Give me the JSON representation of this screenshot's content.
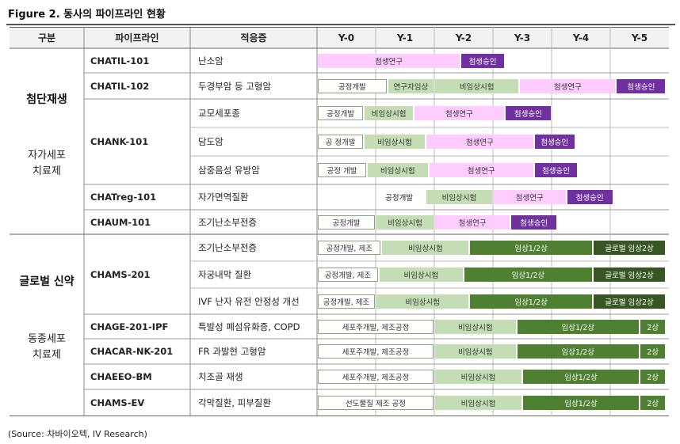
{
  "figure_title": "Figure 2. 동사의 파이프라인 현황",
  "source": "(Source: 차바이오텍, IV Research)",
  "headers": [
    "구분",
    "파이프라인",
    "적응증",
    "Y-0",
    "Y-1",
    "Y-2",
    "Y-3",
    "Y-4",
    "Y-5"
  ],
  "groups": [
    {
      "title": "첨단재생",
      "subtitle_line1": "자가세포",
      "subtitle_line2": "치료제"
    },
    {
      "title": "글로벌 신약",
      "subtitle_line1": "동종세포",
      "subtitle_line2": "치료제"
    }
  ],
  "pipelines": [
    "CHATIL-101",
    "CHATIL-102",
    "CHANK-101",
    "CHATreg-101",
    "CHAUM-101",
    "CHAMS-201",
    "CHAGE-201-IPF",
    "CHACAR-NK-201",
    "CHAEEO-BM",
    "CHAMS-EV"
  ],
  "rows": [
    {
      "indication": "난소암",
      "bars": [
        {
          "label": "첨생연구",
          "color": "pink",
          "start": 0,
          "end": 2.45
        },
        {
          "label": "첨생승인",
          "color": "purple",
          "start": 2.45,
          "end": 3.2
        }
      ]
    },
    {
      "indication": "두경부암 등 고형암",
      "bars": [
        {
          "label": "공정개발",
          "color": "white",
          "start": 0,
          "end": 1.2
        },
        {
          "label": "연구자임상",
          "color": "lgreen",
          "start": 1.2,
          "end": 2.0
        },
        {
          "label": "비임상시험",
          "color": "lgreen",
          "start": 2.0,
          "end": 3.45
        },
        {
          "label": "첨생연구",
          "color": "pink",
          "start": 3.45,
          "end": 5.1
        },
        {
          "label": "첨생승인",
          "color": "purple",
          "start": 5.1,
          "end": 5.95
        }
      ]
    },
    {
      "indication": "교모세포종",
      "bars": [
        {
          "label": "공정개발",
          "color": "white",
          "start": 0,
          "end": 0.8
        },
        {
          "label": "비임상시험",
          "color": "lgreen",
          "start": 0.8,
          "end": 1.65
        },
        {
          "label": "첨생연구",
          "color": "pink",
          "start": 1.65,
          "end": 3.2
        },
        {
          "label": "첨생승인",
          "color": "purple",
          "start": 3.2,
          "end": 4.0
        }
      ]
    },
    {
      "indication": "담도암",
      "bars": [
        {
          "label": "공 정개발",
          "color": "white",
          "start": 0,
          "end": 0.8
        },
        {
          "label": "비임상시험",
          "color": "lgreen",
          "start": 0.8,
          "end": 1.85
        },
        {
          "label": "첨생연구",
          "color": "pink",
          "start": 1.85,
          "end": 3.7
        },
        {
          "label": "첨생승인",
          "color": "purple",
          "start": 3.7,
          "end": 4.4
        }
      ]
    },
    {
      "indication": "삼중음성 유방암",
      "bars": [
        {
          "label": "공정 개발",
          "color": "white",
          "start": 0,
          "end": 0.85
        },
        {
          "label": "비임상시험",
          "color": "lgreen",
          "start": 0.85,
          "end": 1.9
        },
        {
          "label": "첨생연구",
          "color": "pink",
          "start": 1.9,
          "end": 3.7
        },
        {
          "label": "첨생승인",
          "color": "purple",
          "start": 3.7,
          "end": 4.45
        }
      ]
    },
    {
      "indication": "자가면역질환",
      "bars": [
        {
          "label": "공정개발",
          "color": "none",
          "start": 0.95,
          "end": 1.85
        },
        {
          "label": "비임상시험",
          "color": "lgreen",
          "start": 1.85,
          "end": 3.0
        },
        {
          "label": "첨생연구",
          "color": "pink",
          "start": 3.0,
          "end": 4.25
        },
        {
          "label": "첨생승인",
          "color": "purple",
          "start": 4.25,
          "end": 5.05
        }
      ]
    },
    {
      "indication": "조기난소부전증",
      "bars": [
        {
          "label": "공정개발",
          "color": "white",
          "start": 0,
          "end": 1.0
        },
        {
          "label": "비임상시험",
          "color": "lgreen",
          "start": 1.0,
          "end": 2.0
        },
        {
          "label": "첨생연구",
          "color": "pink",
          "start": 2.0,
          "end": 3.3
        },
        {
          "label": "첨생승인",
          "color": "purple",
          "start": 3.3,
          "end": 4.1
        }
      ]
    },
    {
      "indication": "조기난소부전증",
      "bars": [
        {
          "label": "공정개발, 제조",
          "color": "white",
          "start": 0,
          "end": 1.1
        },
        {
          "label": "비임상시험",
          "color": "lgreen",
          "start": 1.1,
          "end": 2.6
        },
        {
          "label": "임상1/2상",
          "color": "dgreen",
          "start": 2.6,
          "end": 4.7
        },
        {
          "label": "글로벌 임상2상",
          "color": "vdark",
          "start": 4.7,
          "end": 5.95
        }
      ]
    },
    {
      "indication": "자궁내막 질환",
      "bars": [
        {
          "label": "공정개발, 제조",
          "color": "white",
          "start": 0,
          "end": 1.05
        },
        {
          "label": "비임상시험",
          "color": "lgreen",
          "start": 1.05,
          "end": 2.5
        },
        {
          "label": "임상1/2상",
          "color": "dgreen",
          "start": 2.5,
          "end": 4.7
        },
        {
          "label": "글로벌 임상2상",
          "color": "vdark",
          "start": 4.7,
          "end": 5.95
        }
      ]
    },
    {
      "indication": "IVF 난자 유전 안정성 개선",
      "bars": [
        {
          "label": "공정개발, 제조",
          "color": "white",
          "start": 0,
          "end": 1.0
        },
        {
          "label": "비임상시험",
          "color": "lgreen",
          "start": 1.0,
          "end": 2.6
        },
        {
          "label": "임상1/2상",
          "color": "dgreen",
          "start": 2.6,
          "end": 4.7
        },
        {
          "label": "글로벌 임상2상",
          "color": "vdark",
          "start": 4.7,
          "end": 5.95
        }
      ]
    },
    {
      "indication": "특발성 폐섬유화증, COPD",
      "bars": [
        {
          "label": "세포주개발, 제조공정",
          "color": "white",
          "start": 0,
          "end": 2.0
        },
        {
          "label": "비임상시험",
          "color": "lgreen",
          "start": 2.0,
          "end": 3.4
        },
        {
          "label": "임상1/2상",
          "color": "dgreen",
          "start": 3.4,
          "end": 5.5
        },
        {
          "label": "2상",
          "color": "dgreen",
          "start": 5.5,
          "end": 5.95
        }
      ]
    },
    {
      "indication": "FR 과발현 고형암",
      "bars": [
        {
          "label": "세포주개발, 제조공정",
          "color": "white",
          "start": 0,
          "end": 2.0
        },
        {
          "label": "비임상시험",
          "color": "lgreen",
          "start": 2.0,
          "end": 3.4
        },
        {
          "label": "임상1/2상",
          "color": "dgreen",
          "start": 3.4,
          "end": 5.5
        },
        {
          "label": "2상",
          "color": "dgreen",
          "start": 5.5,
          "end": 5.95
        }
      ]
    },
    {
      "indication": "치조골 재생",
      "bars": [
        {
          "label": "세포주개발, 제조공정",
          "color": "white",
          "start": 0,
          "end": 2.0
        },
        {
          "label": "비임상시험",
          "color": "lgreen",
          "start": 2.0,
          "end": 3.5
        },
        {
          "label": "임상1/2상",
          "color": "dgreen",
          "start": 3.5,
          "end": 5.5
        },
        {
          "label": "2상",
          "color": "dgreen",
          "start": 5.5,
          "end": 5.95
        }
      ]
    },
    {
      "indication": "각막질환, 피부질환",
      "bars": [
        {
          "label": "선도물질 제조 공정",
          "color": "white",
          "start": 0,
          "end": 2.0
        },
        {
          "label": "비임상시험",
          "color": "lgreen",
          "start": 2.0,
          "end": 3.5
        },
        {
          "label": "임상1/2상",
          "color": "dgreen",
          "start": 3.5,
          "end": 5.5
        },
        {
          "label": "2상",
          "color": "dgreen",
          "start": 5.5,
          "end": 5.95
        }
      ]
    }
  ],
  "colors": {
    "pink": "#ffccff",
    "purple": "#7030a0",
    "white": "#ffffff",
    "lgreen": "#c4ddb5",
    "dgreen": "#4f7f31",
    "vdark": "#375623"
  }
}
